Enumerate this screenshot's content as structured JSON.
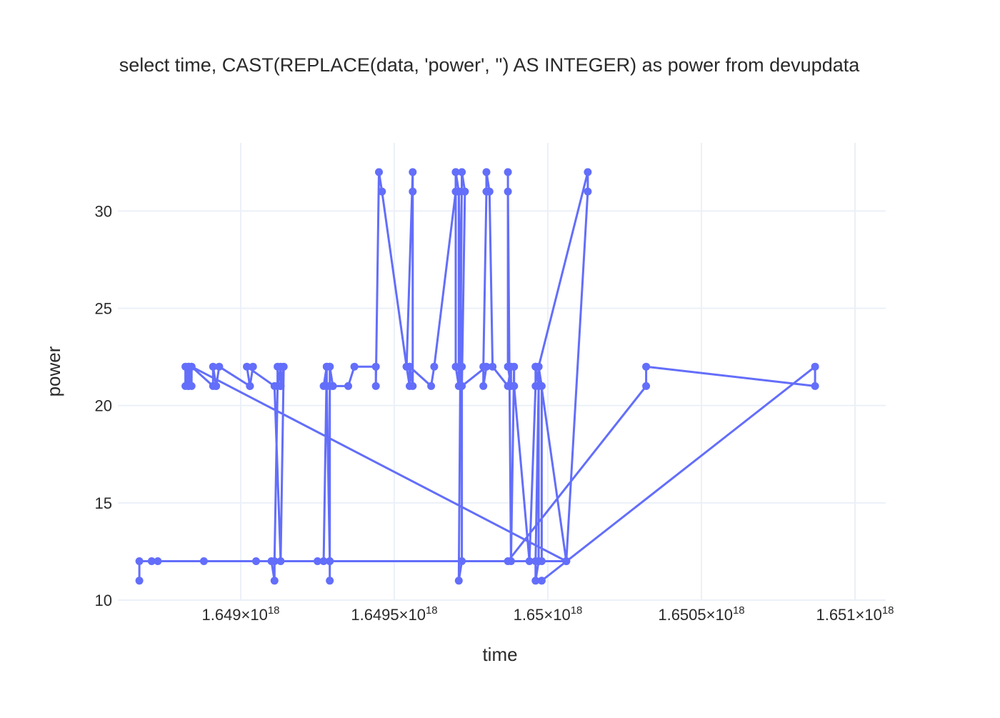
{
  "chart_data": {
    "type": "line",
    "title": "select time, CAST(REPLACE(data, 'power', '') AS INTEGER) as power from devupdata",
    "xlabel": "time",
    "ylabel": "power",
    "xlim": [
      1.6486e+18,
      1.6511e+18
    ],
    "ylim": [
      10,
      33.5
    ],
    "x_ticks": [
      {
        "value": 1.649e+18,
        "mantissa": "1.649",
        "exponent": "18"
      },
      {
        "value": 1.6495e+18,
        "mantissa": "1.6495",
        "exponent": "18"
      },
      {
        "value": 1.65e+18,
        "mantissa": "1.65",
        "exponent": "18"
      },
      {
        "value": 1.6505e+18,
        "mantissa": "1.6505",
        "exponent": "18"
      },
      {
        "value": 1.651e+18,
        "mantissa": "1.651",
        "exponent": "18"
      }
    ],
    "y_ticks": [
      10,
      15,
      20,
      25,
      30
    ],
    "grid": true,
    "marker": true,
    "colors": {
      "series": "#636efa",
      "grid": "#ebf0f8",
      "text": "#2a2a2a"
    },
    "x_unit_scale": 1e+18,
    "series": [
      {
        "x_scaled": [
          1.64867,
          1.64867,
          1.64871,
          1.64888,
          1.64905,
          1.6491,
          1.64911,
          1.64911,
          1.64912,
          1.64912,
          1.64912,
          1.64913,
          1.64913,
          1.64913,
          1.64914,
          1.64913,
          1.64911,
          1.64902,
          1.64903,
          1.64904,
          1.64903,
          1.64893,
          1.64892,
          1.64892,
          1.64891,
          1.64891,
          1.64884,
          1.64883,
          1.64883,
          1.64882,
          1.64882,
          1.64883,
          1.64883,
          1.64884,
          1.64884,
          1.65006,
          1.64873,
          1.64925,
          1.64927,
          1.64928,
          1.64927,
          1.64928,
          1.64928,
          1.64929,
          1.64929,
          1.64929,
          1.64929,
          1.6493,
          1.6493,
          1.64929,
          1.64929,
          1.64935,
          1.64937,
          1.64944,
          1.64944,
          1.64945,
          1.64946,
          1.64954,
          1.64955,
          1.64955,
          1.64954,
          1.64956,
          1.64956,
          1.64956,
          1.64955,
          1.64962,
          1.64963,
          1.6497,
          1.6497,
          1.64971,
          1.64971,
          1.6497,
          1.6497,
          1.64971,
          1.64972,
          1.64972,
          1.64971,
          1.64972,
          1.64973,
          1.64972,
          1.6498,
          1.64979,
          1.64979,
          1.6498,
          1.6498,
          1.64981,
          1.64982,
          1.64987,
          1.64988,
          1.64988,
          1.64987,
          1.64987,
          1.64987,
          1.64988,
          1.64989,
          1.64989,
          1.64989,
          1.64994,
          1.64996,
          1.64996,
          1.64996,
          1.64997,
          1.64997,
          1.64996,
          1.64996,
          1.64997,
          1.64997,
          1.65006,
          1.65013,
          1.65013,
          1.64997,
          1.64998,
          1.64998,
          1.64987,
          1.65032,
          1.65032,
          1.65087,
          1.65087,
          1.64998
        ],
        "y": [
          11,
          12,
          12,
          12,
          12,
          12,
          11,
          12,
          21,
          22,
          21,
          22,
          21,
          21,
          22,
          12,
          21,
          22,
          21,
          22,
          21,
          22,
          21,
          21,
          22,
          21,
          22,
          21,
          22,
          21,
          22,
          21,
          22,
          21,
          22,
          12,
          12,
          12,
          12,
          22,
          21,
          22,
          21,
          12,
          11,
          12,
          22,
          21,
          21,
          22,
          21,
          21,
          22,
          22,
          21,
          32,
          31,
          22,
          22,
          21,
          22,
          32,
          31,
          21,
          22,
          21,
          22,
          31,
          32,
          31,
          21,
          22,
          32,
          31,
          22,
          12,
          11,
          32,
          31,
          21,
          22,
          21,
          22,
          31,
          32,
          31,
          22,
          21,
          22,
          21,
          22,
          32,
          31,
          12,
          22,
          21,
          21,
          12,
          21,
          22,
          22,
          21,
          21,
          12,
          11,
          12,
          22,
          12,
          31,
          32,
          22,
          21,
          12,
          12,
          21,
          22,
          21,
          22,
          11
        ]
      }
    ]
  }
}
